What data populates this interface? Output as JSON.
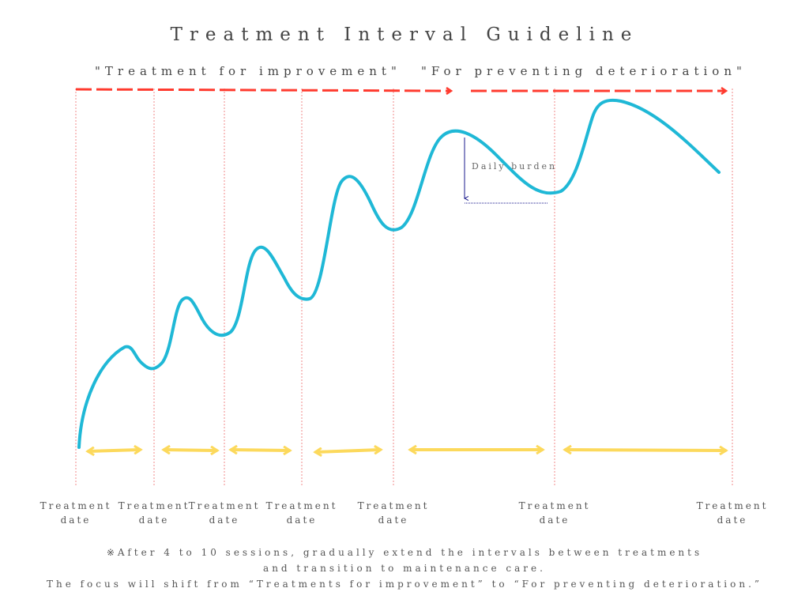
{
  "title": "Treatment Interval Guideline",
  "phases": {
    "improvement": "\"Treatment for improvement\"",
    "prevention": "\"For preventing deterioration\""
  },
  "burden_label": "Daily burden",
  "treatment_label": {
    "line1": "Treatment",
    "line2": "date"
  },
  "treatment_count": 7,
  "note": {
    "line1": "※After 4 to 10 sessions, gradually extend the intervals between treatments",
    "line2": "and transition to maintenance care.",
    "line3": "The focus will shift from “Treatments for improvement” to “For preventing deterioration.”"
  },
  "colors": {
    "curve": "#1fb8d6",
    "phase_arrow": "#ff3b2f",
    "interval_arrow": "#fcd95c",
    "treatment_line": "#f08a8a",
    "burden_marker": "#1a1a8c",
    "text": "#555555"
  }
}
